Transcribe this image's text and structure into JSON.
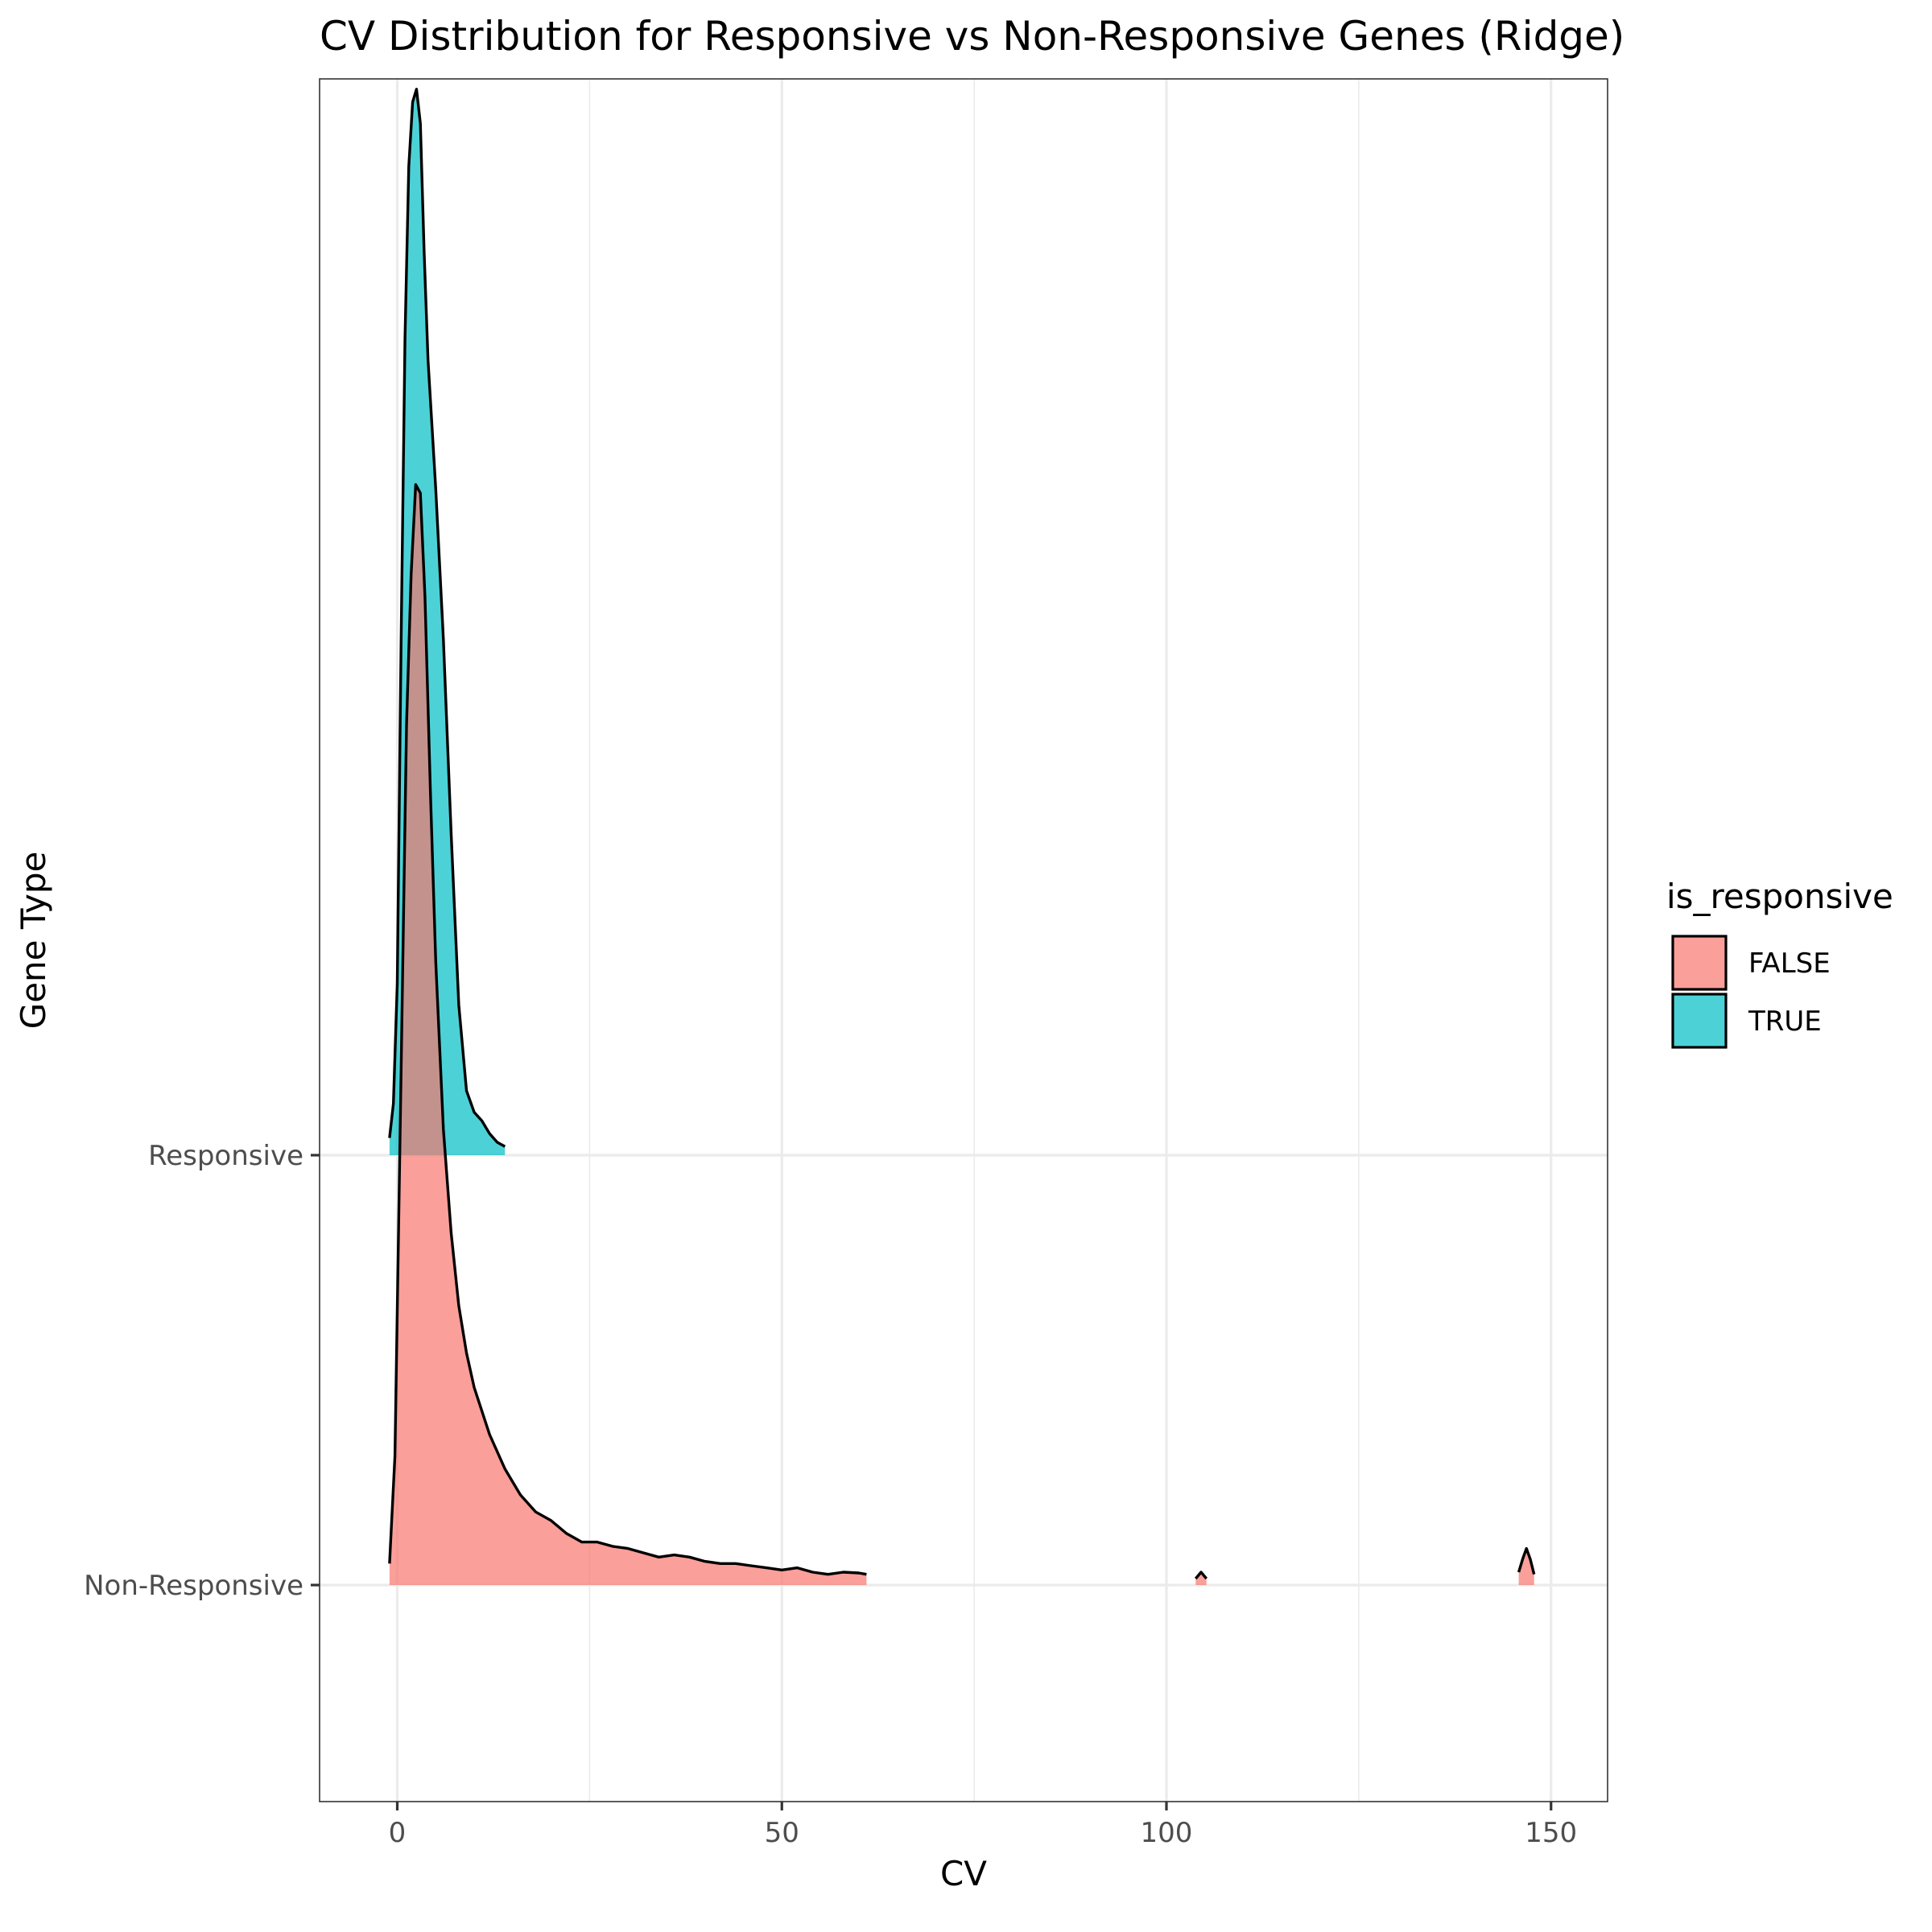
{
  "chart_data": {
    "type": "area",
    "subtype": "ridgeline-density",
    "title": "CV Distribution for Responsive vs Non-Responsive Genes (Ridge)",
    "xlabel": "CV",
    "ylabel": "Gene Type",
    "xlim": [
      -10,
      157.5
    ],
    "x_ticks": [
      0,
      50,
      100,
      150
    ],
    "x_tick_labels": [
      "0",
      "50",
      "100",
      "150"
    ],
    "x_minor_ticks": [
      25,
      75,
      125
    ],
    "categories": [
      "Non-Responsive",
      "Responsive"
    ],
    "grid": true,
    "legend": {
      "title": "is_responsive",
      "position": "right",
      "entries": [
        {
          "label": "FALSE",
          "color": "#F8766D"
        },
        {
          "label": "TRUE",
          "color": "#00BFC4"
        }
      ]
    },
    "density_unit_note": "ridge heights expressed in multiples of category spacing",
    "series": [
      {
        "name": "FALSE",
        "category": "Non-Responsive",
        "color": "#F8766D",
        "segments": [
          [
            [
              -1,
              0.05
            ],
            [
              -0.3,
              0.3
            ],
            [
              0.5,
              1.2
            ],
            [
              1.2,
              2.0
            ],
            [
              1.8,
              2.35
            ],
            [
              2.4,
              2.56
            ],
            [
              3.0,
              2.54
            ],
            [
              3.6,
              2.3
            ],
            [
              4.3,
              1.85
            ],
            [
              5.0,
              1.45
            ],
            [
              6.0,
              1.06
            ],
            [
              7.0,
              0.82
            ],
            [
              8.0,
              0.65
            ],
            [
              9.0,
              0.54
            ],
            [
              10.0,
              0.46
            ],
            [
              12.0,
              0.35
            ],
            [
              14.0,
              0.27
            ],
            [
              16.0,
              0.21
            ],
            [
              18.0,
              0.17
            ],
            [
              20.0,
              0.15
            ],
            [
              22.0,
              0.12
            ],
            [
              24.0,
              0.1
            ],
            [
              26.0,
              0.1
            ],
            [
              28.0,
              0.09
            ],
            [
              30.0,
              0.085
            ],
            [
              32.0,
              0.075
            ],
            [
              34.0,
              0.065
            ],
            [
              36.0,
              0.07
            ],
            [
              38.0,
              0.065
            ],
            [
              40.0,
              0.055
            ],
            [
              42.0,
              0.05
            ],
            [
              44.0,
              0.05
            ],
            [
              46.0,
              0.045
            ],
            [
              48.0,
              0.04
            ],
            [
              50.0,
              0.035
            ],
            [
              52.0,
              0.04
            ],
            [
              54.0,
              0.03
            ],
            [
              56.0,
              0.025
            ],
            [
              58.0,
              0.03
            ],
            [
              60.0,
              0.028
            ],
            [
              61.0,
              0.025
            ]
          ],
          [
            [
              103.8,
              0.015
            ],
            [
              104.5,
              0.03
            ],
            [
              105.2,
              0.015
            ]
          ],
          [
            [
              145.8,
              0.03
            ],
            [
              146.3,
              0.06
            ],
            [
              146.8,
              0.085
            ],
            [
              147.3,
              0.06
            ],
            [
              147.8,
              0.025
            ]
          ]
        ]
      },
      {
        "name": "TRUE",
        "category": "Responsive",
        "color": "#00BFC4",
        "segments": [
          [
            [
              -1,
              0.04
            ],
            [
              -0.5,
              0.12
            ],
            [
              0,
              0.4
            ],
            [
              0.5,
              1.2
            ],
            [
              1.0,
              1.9
            ],
            [
              1.5,
              2.3
            ],
            [
              2.0,
              2.45
            ],
            [
              2.5,
              2.48
            ],
            [
              3.0,
              2.4
            ],
            [
              3.5,
              2.1
            ],
            [
              4.0,
              1.85
            ],
            [
              5.0,
              1.55
            ],
            [
              6.0,
              1.2
            ],
            [
              7.0,
              0.75
            ],
            [
              8.0,
              0.35
            ],
            [
              9.0,
              0.15
            ],
            [
              10.0,
              0.1
            ],
            [
              11.0,
              0.08
            ],
            [
              12.0,
              0.05
            ],
            [
              13.0,
              0.03
            ],
            [
              14.0,
              0.02
            ]
          ]
        ]
      }
    ]
  }
}
